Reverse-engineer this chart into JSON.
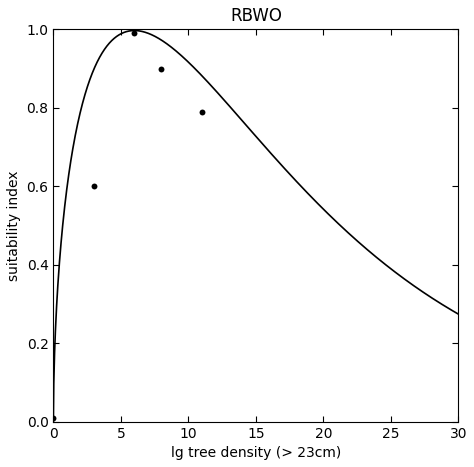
{
  "title": "RBWO",
  "xlabel": "lg tree density (> 23cm)",
  "ylabel": "suitability index",
  "xlim": [
    0,
    30
  ],
  "ylim": [
    0.0,
    1.0
  ],
  "xticks": [
    0,
    5,
    10,
    15,
    20,
    25,
    30
  ],
  "yticks": [
    0.0,
    0.2,
    0.4,
    0.6,
    0.8,
    1.0
  ],
  "scatter_x": [
    0,
    3,
    6,
    8,
    11
  ],
  "scatter_y": [
    0.01,
    0.6,
    0.99,
    0.9,
    0.79
  ],
  "curve_color": "#000000",
  "scatter_color": "#000000",
  "scatter_size": 18,
  "bg_color": "#ffffff",
  "title_fontsize": 12,
  "label_fontsize": 10,
  "tick_fontsize": 10,
  "curve_end_y": 0.27
}
